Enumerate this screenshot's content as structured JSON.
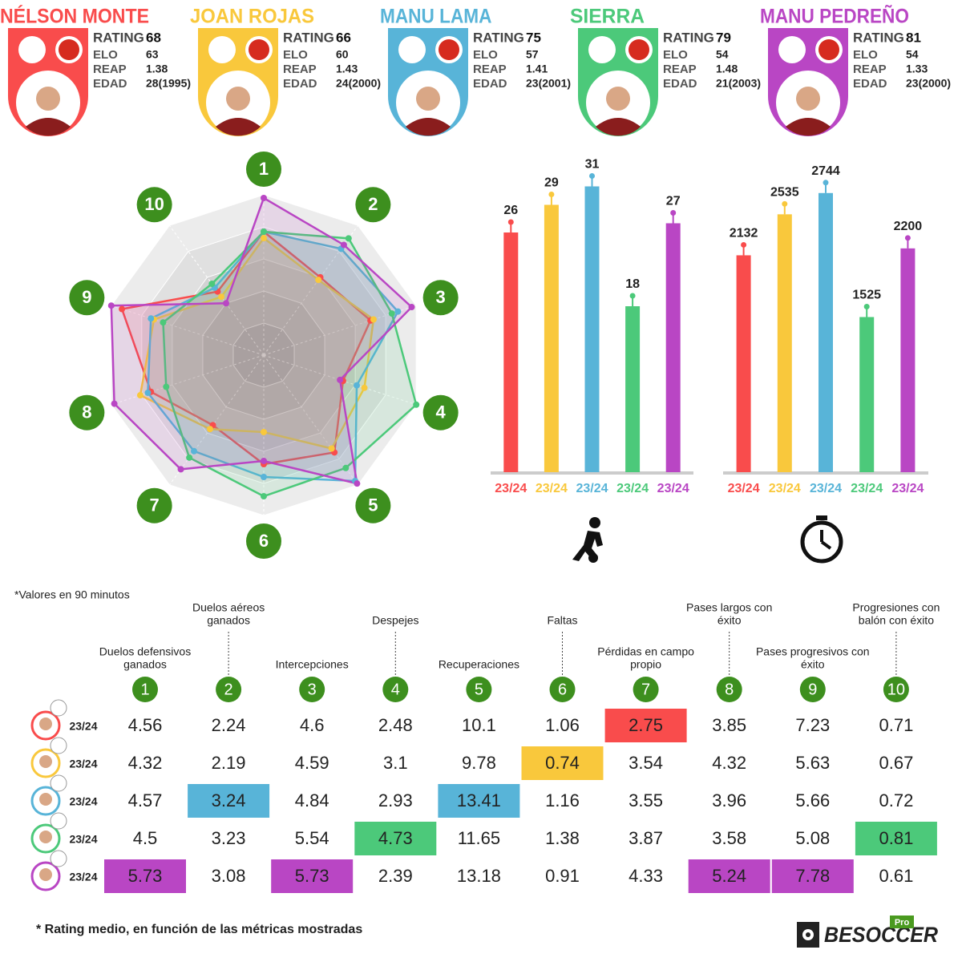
{
  "players": [
    {
      "name": "NÉLSON MONTE",
      "color": "#f94c4c",
      "rating": 68,
      "elo": 63,
      "reap": 1.38,
      "edad": "28(1995)"
    },
    {
      "name": "JOAN ROJAS",
      "color": "#f9c83c",
      "rating": 66,
      "elo": 60,
      "reap": 1.43,
      "edad": "24(2000)"
    },
    {
      "name": "MANU LAMA",
      "color": "#58b4d8",
      "rating": 75,
      "elo": 57,
      "reap": 1.41,
      "edad": "23(2001)"
    },
    {
      "name": "SIERRA",
      "color": "#4cc97a",
      "rating": 79,
      "elo": 54,
      "reap": 1.48,
      "edad": "21(2003)"
    },
    {
      "name": "MANU PEDREÑO",
      "color": "#b946c4",
      "rating": 81,
      "elo": 54,
      "reap": 1.33,
      "edad": "23(2000)"
    }
  ],
  "stat_labels": {
    "rating": "RATING",
    "elo": "ELO",
    "reap": "REAP",
    "edad": "EDAD"
  },
  "chart_data": [
    {
      "type": "radar",
      "axes": [
        1,
        2,
        3,
        4,
        5,
        6,
        7,
        8,
        9,
        10
      ],
      "ylim": [
        0,
        100
      ],
      "series": [
        {
          "color": "#f94c4c",
          "values": [
            77,
            60,
            70,
            52,
            75,
            68,
            54,
            74,
            93,
            49
          ]
        },
        {
          "color": "#f9c83c",
          "values": [
            73,
            58,
            72,
            66,
            72,
            48,
            57,
            81,
            72,
            45
          ]
        },
        {
          "color": "#58b4d8",
          "values": [
            77,
            82,
            88,
            61,
            97,
            76,
            74,
            76,
            74,
            52
          ]
        },
        {
          "color": "#4cc97a",
          "values": [
            77,
            90,
            84,
            100,
            87,
            88,
            79,
            64,
            66,
            55
          ]
        },
        {
          "color": "#b946c4",
          "values": [
            98,
            85,
            97,
            50,
            99,
            66,
            88,
            98,
            100,
            40
          ]
        }
      ]
    },
    {
      "type": "bar",
      "categories": [
        "23/24",
        "23/24",
        "23/24",
        "23/24",
        "23/24"
      ],
      "values": [
        26,
        29,
        31,
        18,
        27
      ],
      "colors": [
        "#f94c4c",
        "#f9c83c",
        "#58b4d8",
        "#4cc97a",
        "#b946c4"
      ],
      "ylim": [
        0,
        32
      ]
    },
    {
      "type": "bar",
      "categories": [
        "23/24",
        "23/24",
        "23/24",
        "23/24",
        "23/24"
      ],
      "values": [
        2132,
        2535,
        2744,
        1525,
        2200
      ],
      "colors": [
        "#f94c4c",
        "#f9c83c",
        "#58b4d8",
        "#4cc97a",
        "#b946c4"
      ],
      "ylim": [
        0,
        2900
      ]
    }
  ],
  "note": "*Valores en 90 minutos",
  "table": {
    "columns": [
      {
        "number": 1,
        "name": [
          "Duelos defensivos",
          "ganados"
        ]
      },
      {
        "number": 2,
        "name": [
          "Duelos aéreos",
          "ganados"
        ]
      },
      {
        "number": 3,
        "name": [
          "Intercepciones"
        ]
      },
      {
        "number": 4,
        "name": [
          "Despejes"
        ]
      },
      {
        "number": 5,
        "name": [
          "Recuperaciones"
        ]
      },
      {
        "number": 6,
        "name": [
          "Faltas"
        ]
      },
      {
        "number": 7,
        "name": [
          "Pérdidas en campo",
          "propio"
        ]
      },
      {
        "number": 8,
        "name": [
          "Pases largos con",
          "éxito"
        ]
      },
      {
        "number": 9,
        "name": [
          "Pases progresivos con",
          "éxito"
        ]
      },
      {
        "number": 10,
        "name": [
          "Progresiones con",
          "balón con éxito"
        ]
      }
    ],
    "rows": [
      {
        "season": "23/24",
        "values": [
          4.56,
          2.24,
          4.6,
          2.48,
          10.1,
          1.06,
          2.75,
          3.85,
          7.23,
          0.71
        ],
        "highlight": [
          6
        ]
      },
      {
        "season": "23/24",
        "values": [
          4.32,
          2.19,
          4.59,
          3.1,
          9.78,
          0.74,
          3.54,
          4.32,
          5.63,
          0.67
        ],
        "highlight": [
          5
        ]
      },
      {
        "season": "23/24",
        "values": [
          4.57,
          3.24,
          4.84,
          2.93,
          13.41,
          1.16,
          3.55,
          3.96,
          5.66,
          0.72
        ],
        "highlight": [
          1,
          4
        ]
      },
      {
        "season": "23/24",
        "values": [
          4.5,
          3.23,
          5.54,
          4.73,
          11.65,
          1.38,
          3.87,
          3.58,
          5.08,
          0.81
        ],
        "highlight": [
          3,
          9
        ]
      },
      {
        "season": "23/24",
        "values": [
          5.73,
          3.08,
          5.73,
          2.39,
          13.18,
          0.91,
          4.33,
          5.24,
          7.78,
          0.61
        ],
        "highlight": [
          0,
          2,
          7,
          8
        ]
      }
    ]
  },
  "footnote": "* Rating medio, en función de las métricas mostradas",
  "logo": {
    "text": "BESOCCER",
    "badge": "Pro"
  }
}
